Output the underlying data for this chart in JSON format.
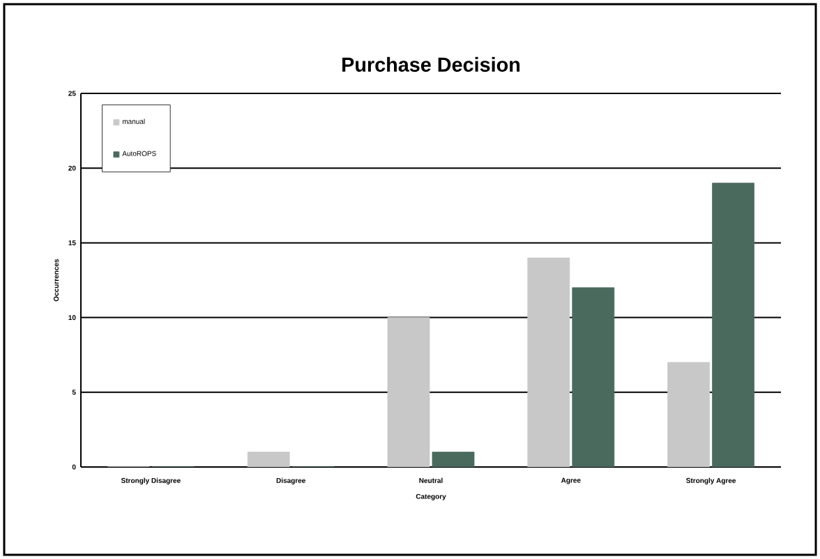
{
  "chart_data": {
    "type": "bar",
    "title": "Purchase Decision",
    "xlabel": "Category",
    "ylabel": "Occurrences",
    "categories": [
      "Strongly  Disagree",
      "Disagree",
      "Neutral",
      "Agree",
      "Strongly  Agree"
    ],
    "series": [
      {
        "name": "manual",
        "color": "#c8c8c8",
        "values": [
          0,
          1,
          10,
          14,
          7
        ]
      },
      {
        "name": "AutoROPS",
        "color": "#4a6a5e",
        "values": [
          0,
          0,
          1,
          12,
          19
        ]
      }
    ],
    "ylim": [
      0,
      25
    ],
    "yticks": [
      0,
      5,
      10,
      15,
      20,
      25
    ],
    "grid": "y",
    "legend": "top left"
  }
}
